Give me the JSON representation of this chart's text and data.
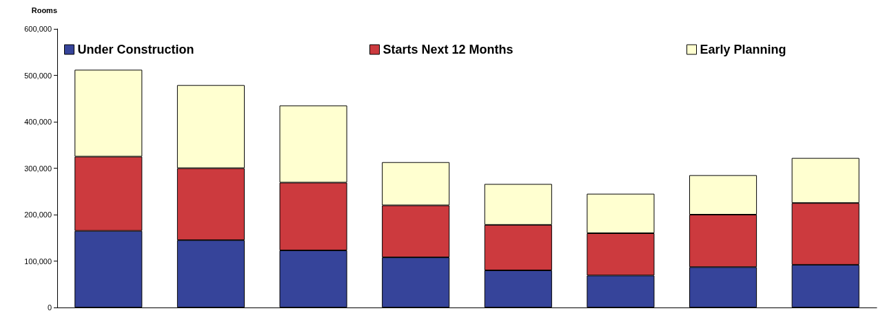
{
  "chart_data": {
    "type": "bar",
    "stacked": true,
    "ylabel": "Rooms",
    "categories": [
      null,
      null,
      null,
      null,
      null,
      null,
      null,
      null
    ],
    "series": [
      {
        "name": "Under Construction",
        "color": "#36449a",
        "values": [
          165000,
          145000,
          123000,
          108000,
          80000,
          69000,
          87000,
          92000
        ]
      },
      {
        "name": "Starts Next 12 Months",
        "color": "#cc3a3e",
        "values": [
          160000,
          155000,
          146000,
          112000,
          98000,
          91000,
          113000,
          133000
        ]
      },
      {
        "name": "Early Planning",
        "color": "#ffffd0",
        "values": [
          187000,
          179000,
          166000,
          93000,
          88000,
          85000,
          85000,
          97000
        ]
      }
    ],
    "ylim": [
      0,
      600000
    ],
    "yticks": [
      0,
      {
        "value": 100000,
        "label": "100,000"
      },
      {
        "value": 200000,
        "label": "200,000"
      },
      {
        "value": 300000,
        "label": "300,000"
      },
      {
        "value": 400000,
        "label": "400,000"
      },
      {
        "value": 500000,
        "label": "500,000"
      },
      {
        "value": 600000,
        "label": "600,000"
      }
    ],
    "grid": false,
    "legend": "top"
  }
}
